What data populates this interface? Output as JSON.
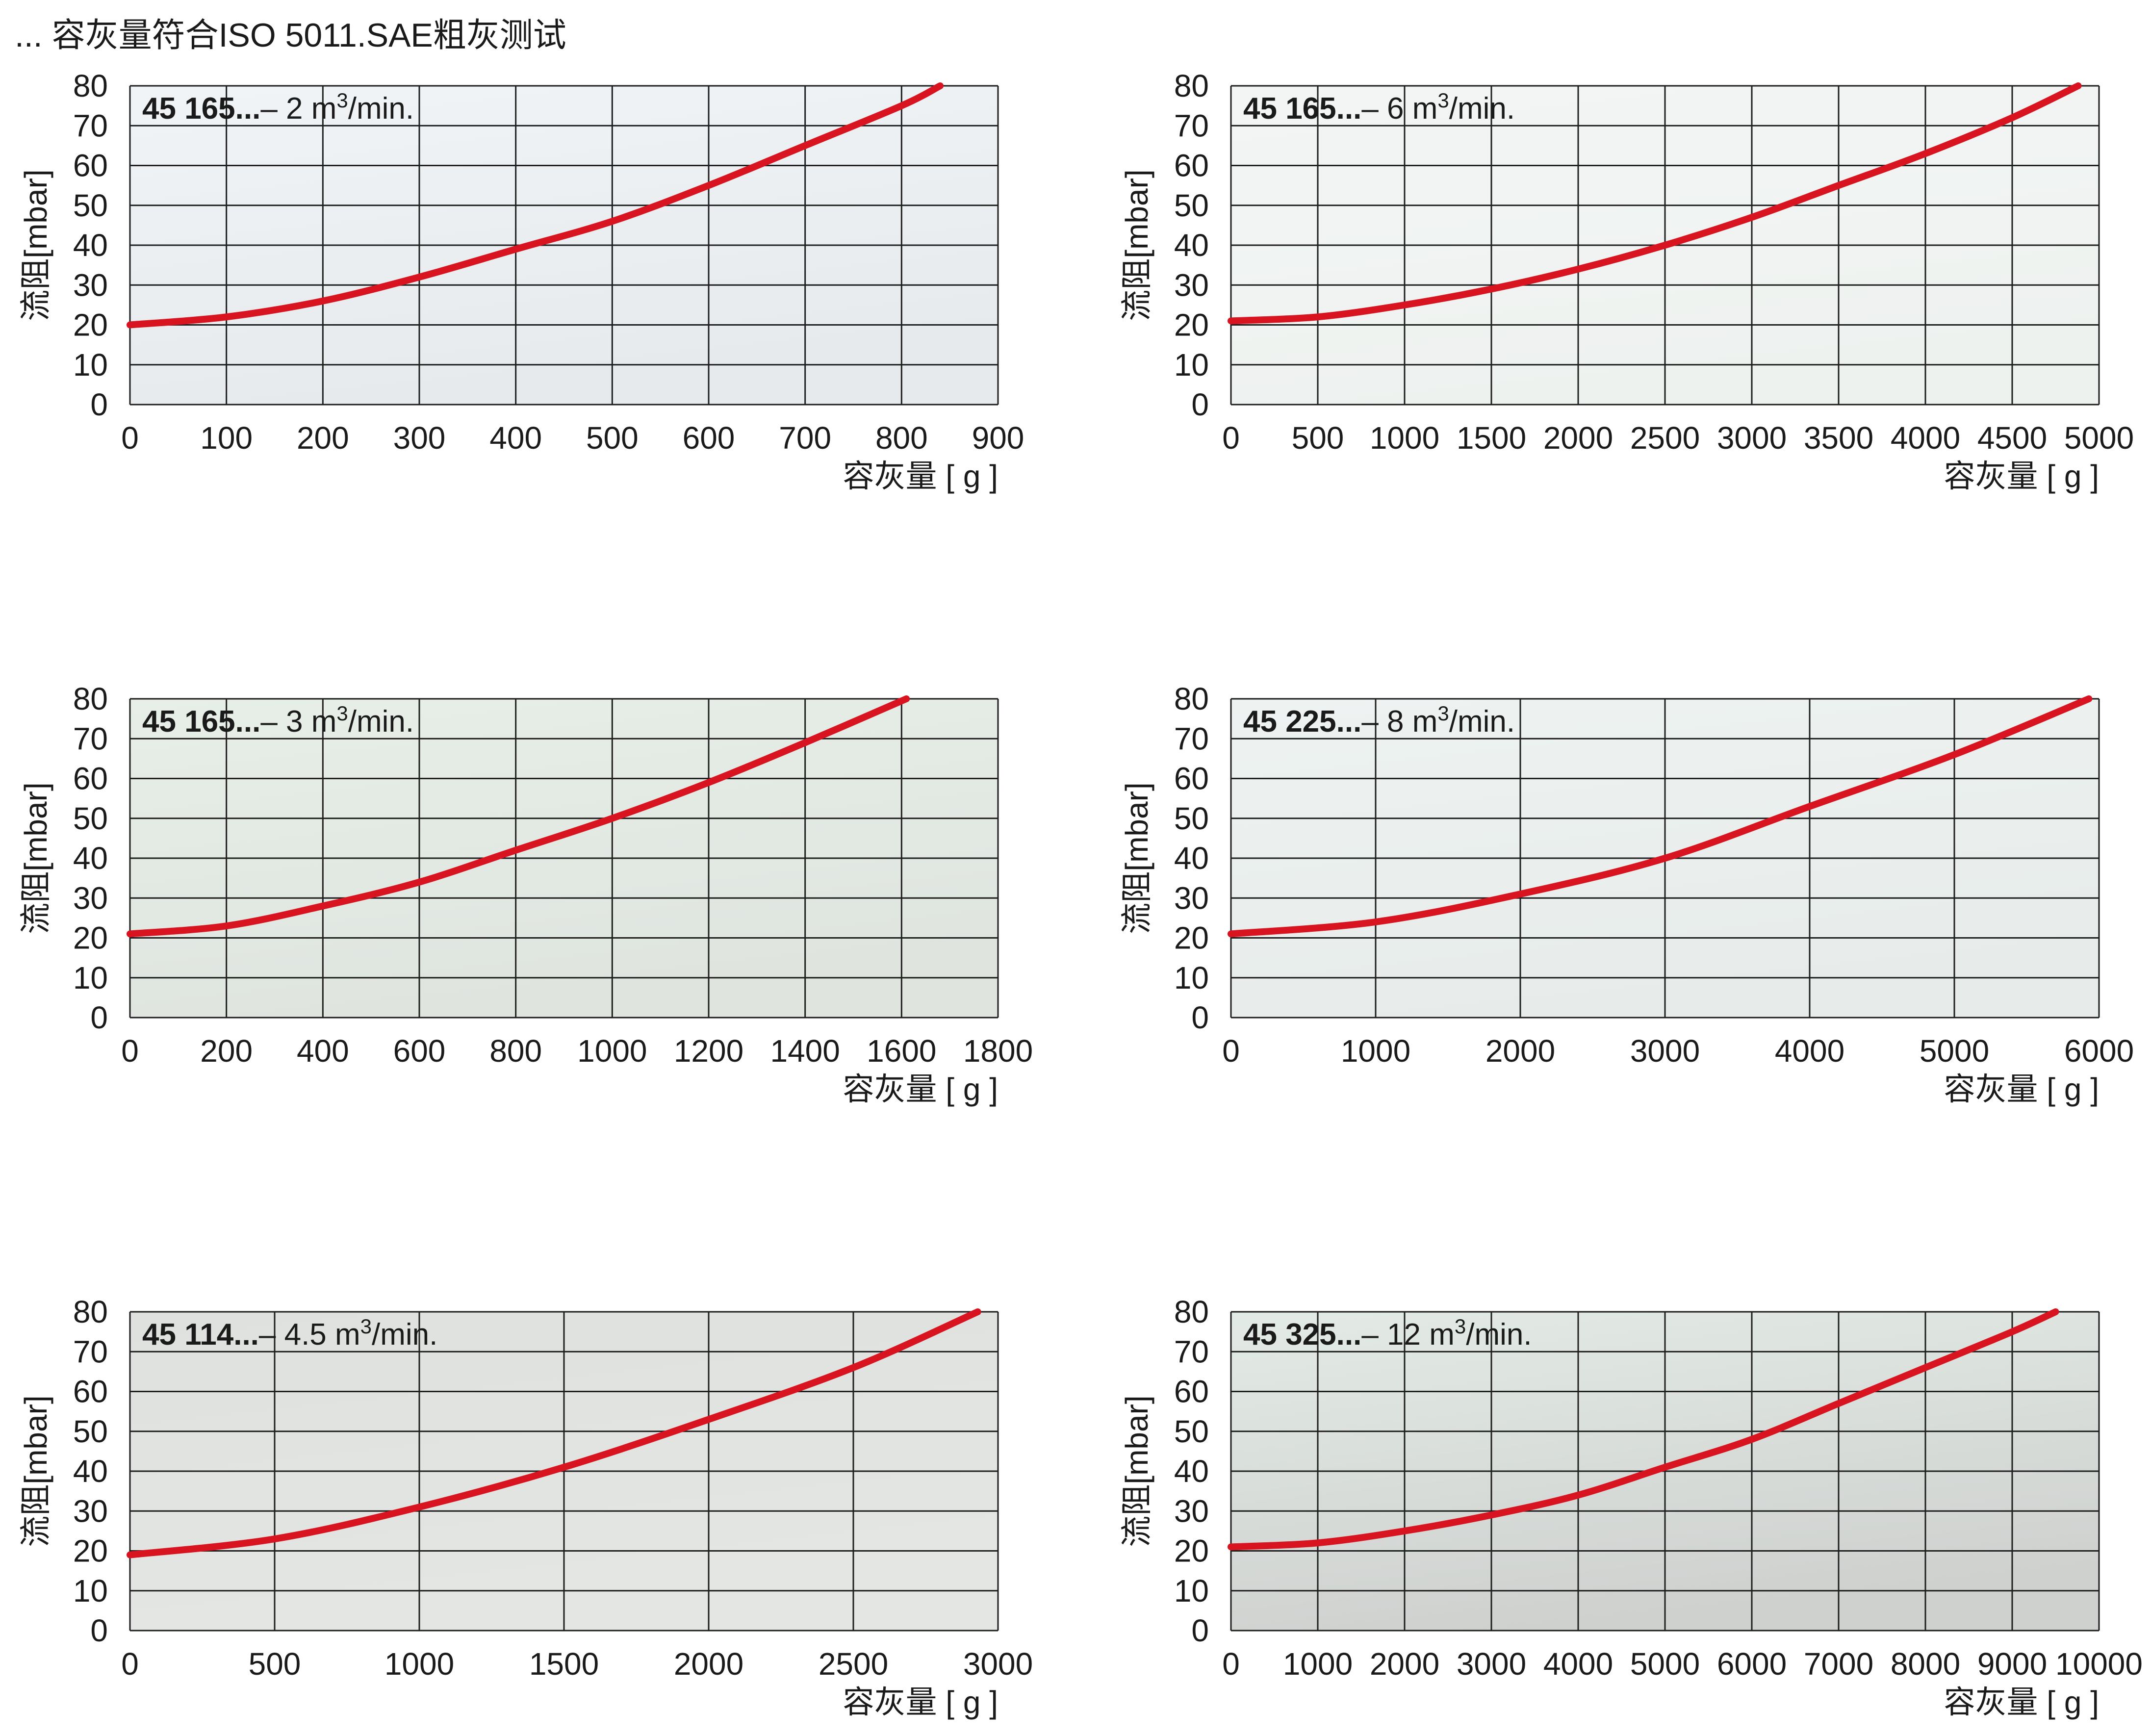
{
  "heading": "... 容灰量符合ISO 5011.SAE粗灰测试",
  "colors": {
    "curve": "#d7141f",
    "grid": "#1e1e1e"
  },
  "chart_data": [
    {
      "type": "line",
      "title_bold": "45  165...",
      "title_rest": "– 2 m",
      "title_sup": "3",
      "title_tail": "/min.",
      "xlabel": "容灰量 [ g ]",
      "ylabel": "流阻[mbar]",
      "xlim": [
        0,
        900
      ],
      "ylim": [
        0,
        80
      ],
      "xticks": [
        0,
        100,
        200,
        300,
        400,
        500,
        600,
        700,
        800,
        900
      ],
      "yticks": [
        0,
        10,
        20,
        30,
        40,
        50,
        60,
        70,
        80
      ],
      "background": [
        "#f1f4f6",
        "#e6eaec"
      ],
      "series": [
        {
          "x": [
            0,
            100,
            200,
            300,
            400,
            500,
            600,
            700,
            800,
            840
          ],
          "y": [
            20,
            22,
            26,
            32,
            39,
            46,
            55,
            65,
            75,
            80
          ]
        }
      ]
    },
    {
      "type": "line",
      "title_bold": "45  165...",
      "title_rest": "– 6 m",
      "title_sup": "3",
      "title_tail": "/min.",
      "xlabel": "容灰量 [ g ]",
      "ylabel": "流阻[mbar]",
      "xlim": [
        0,
        5000
      ],
      "ylim": [
        0,
        80
      ],
      "xticks": [
        0,
        500,
        1000,
        1500,
        2000,
        2500,
        3000,
        3500,
        4000,
        4500,
        5000
      ],
      "yticks": [
        0,
        10,
        20,
        30,
        40,
        50,
        60,
        70,
        80
      ],
      "background": [
        "#f3f5f5",
        "#eef2ef"
      ],
      "series": [
        {
          "x": [
            0,
            500,
            1000,
            1500,
            2000,
            2500,
            3000,
            3500,
            4000,
            4500,
            4880
          ],
          "y": [
            21,
            22,
            25,
            29,
            34,
            40,
            47,
            55,
            63,
            72,
            80
          ]
        }
      ]
    },
    {
      "type": "line",
      "title_bold": "45  165...",
      "title_rest": "– 3 m",
      "title_sup": "3",
      "title_tail": "/min.",
      "xlabel": "容灰量 [ g ]",
      "ylabel": "流阻[mbar]",
      "xlim": [
        0,
        1800
      ],
      "ylim": [
        0,
        80
      ],
      "xticks": [
        0,
        200,
        400,
        600,
        800,
        1000,
        1200,
        1400,
        1600,
        1800
      ],
      "yticks": [
        0,
        10,
        20,
        30,
        40,
        50,
        60,
        70,
        80
      ],
      "background": [
        "#e7efe8",
        "#dfe4df"
      ],
      "series": [
        {
          "x": [
            0,
            200,
            400,
            600,
            800,
            1000,
            1200,
            1400,
            1610
          ],
          "y": [
            21,
            23,
            28,
            34,
            42,
            50,
            59,
            69,
            80
          ]
        }
      ]
    },
    {
      "type": "line",
      "title_bold": "45  225...",
      "title_rest": "– 8 m",
      "title_sup": "3",
      "title_tail": "/min.",
      "xlabel": "容灰量 [ g ]",
      "ylabel": "流阻[mbar]",
      "xlim": [
        0,
        6000
      ],
      "ylim": [
        0,
        80
      ],
      "xticks": [
        0,
        1000,
        2000,
        3000,
        4000,
        5000,
        6000
      ],
      "yticks": [
        0,
        10,
        20,
        30,
        40,
        50,
        60,
        70,
        80
      ],
      "background": [
        "#eef3f2",
        "#e7ecea"
      ],
      "series": [
        {
          "x": [
            0,
            1000,
            2000,
            3000,
            4000,
            5000,
            5930
          ],
          "y": [
            21,
            24,
            31,
            40,
            53,
            66,
            80
          ]
        }
      ]
    },
    {
      "type": "line",
      "title_bold": "45  114...",
      "title_rest": "– 4.5 m",
      "title_sup": "3",
      "title_tail": "/min.",
      "xlabel": "容灰量 [ g ]",
      "ylabel": "流阻[mbar]",
      "xlim": [
        0,
        3000
      ],
      "ylim": [
        0,
        80
      ],
      "xticks": [
        0,
        500,
        1000,
        1500,
        2000,
        2500,
        3000
      ],
      "yticks": [
        0,
        10,
        20,
        30,
        40,
        50,
        60,
        70,
        80
      ],
      "background": [
        "#dfe1df",
        "#e4e6e4"
      ],
      "series": [
        {
          "x": [
            0,
            500,
            1000,
            1500,
            2000,
            2500,
            2930
          ],
          "y": [
            19,
            23,
            31,
            41,
            53,
            66,
            80
          ]
        }
      ]
    },
    {
      "type": "line",
      "title_bold": "45  325...",
      "title_rest": "– 12 m",
      "title_sup": "3",
      "title_tail": "/min.",
      "xlabel": "容灰量 [ g ]",
      "ylabel": "流阻[mbar]",
      "xlim": [
        0,
        10000
      ],
      "ylim": [
        0,
        80
      ],
      "xticks": [
        0,
        1000,
        2000,
        3000,
        4000,
        5000,
        6000,
        7000,
        8000,
        9000,
        10000
      ],
      "yticks": [
        0,
        10,
        20,
        30,
        40,
        50,
        60,
        70,
        80
      ],
      "background": [
        "#e3ebe6",
        "#cfd1cf"
      ],
      "series": [
        {
          "x": [
            0,
            1000,
            2000,
            3000,
            4000,
            5000,
            6000,
            7000,
            8000,
            9000,
            9500
          ],
          "y": [
            21,
            22,
            25,
            29,
            34,
            41,
            48,
            57,
            66,
            75,
            80
          ]
        }
      ]
    }
  ]
}
